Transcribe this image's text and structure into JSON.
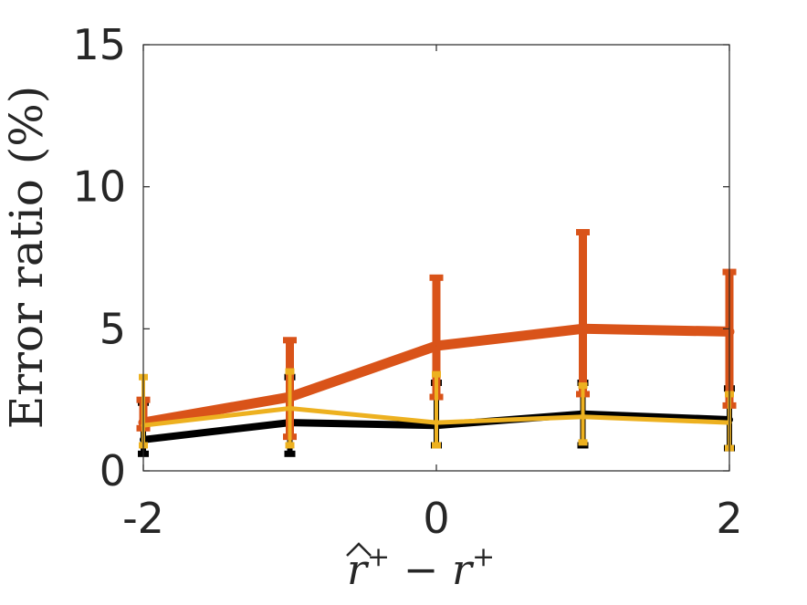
{
  "chart_data": {
    "type": "line",
    "title": "",
    "xlabel_parts": [
      "r",
      "+",
      " − ",
      "r",
      "+"
    ],
    "ylabel": "Error ratio (%)",
    "x": [
      -2,
      -1,
      0,
      1,
      2
    ],
    "xlim": [
      -2,
      2
    ],
    "ylim": [
      0,
      15
    ],
    "xticks": [
      -2,
      0,
      2
    ],
    "xtick_labels": [
      "-2",
      "0",
      "2"
    ],
    "yticks": [
      0,
      5,
      10,
      15
    ],
    "ytick_labels": [
      "0",
      "5",
      "10",
      "15"
    ],
    "grid": false,
    "legend": "none",
    "series": [
      {
        "color": "#000000",
        "values": [
          1.1,
          1.7,
          1.6,
          2.0,
          1.8
        ],
        "lower": [
          0.6,
          0.6,
          0.9,
          0.9,
          0.8
        ],
        "upper": [
          2.4,
          3.3,
          3.1,
          3.1,
          2.9
        ],
        "line_width": 8
      },
      {
        "color": "#D95319",
        "values": [
          1.7,
          2.6,
          4.4,
          5.0,
          4.9
        ],
        "lower": [
          1.5,
          1.2,
          2.6,
          2.7,
          2.3
        ],
        "upper": [
          2.5,
          4.6,
          6.8,
          8.4,
          7.0
        ],
        "line_width": 11
      },
      {
        "color": "#EDB120",
        "values": [
          1.6,
          2.2,
          1.7,
          1.9,
          1.7
        ],
        "lower": [
          0.9,
          0.9,
          0.9,
          1.0,
          0.8
        ],
        "upper": [
          3.3,
          3.5,
          3.4,
          3.0,
          2.7
        ],
        "line_width": 5
      }
    ]
  }
}
